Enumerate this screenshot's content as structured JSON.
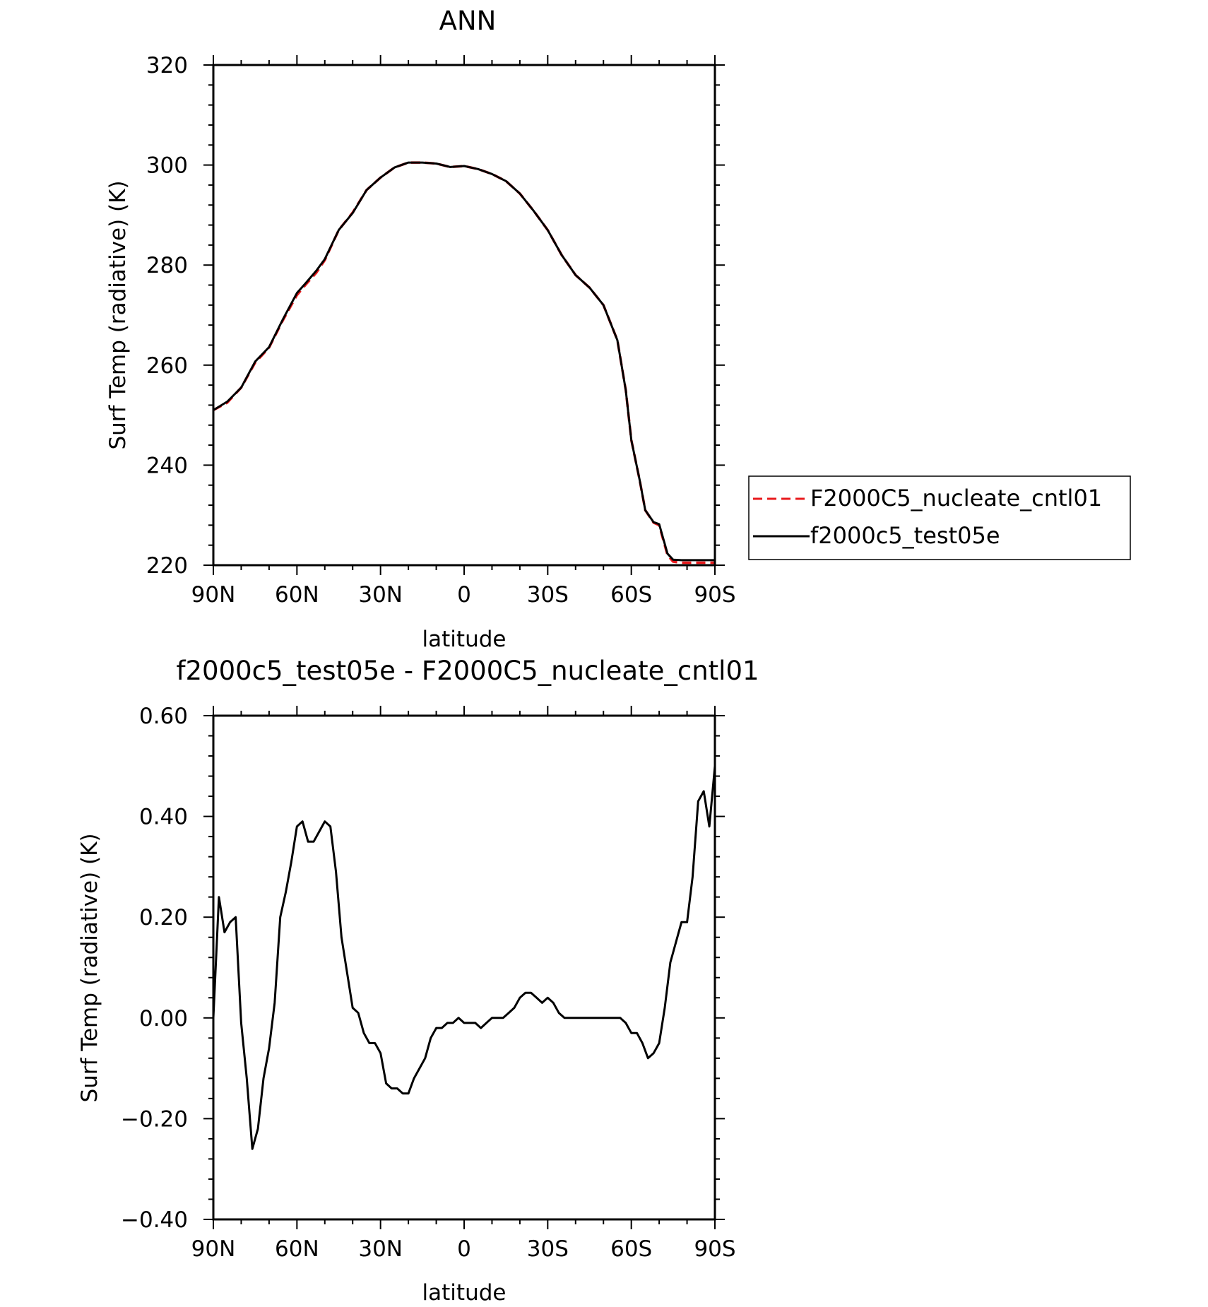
{
  "chart_data": [
    {
      "type": "line",
      "title": "ANN",
      "xlabel": "latitude",
      "ylabel": "Surf Temp (radiative) (K)",
      "xlim": [
        90,
        -90
      ],
      "ylim": [
        220,
        320
      ],
      "x_ticks": [
        90,
        60,
        30,
        0,
        -30,
        -60,
        -90
      ],
      "x_tick_labels": [
        "90N",
        "60N",
        "30N",
        "0",
        "30S",
        "60S",
        "90S"
      ],
      "y_ticks": [
        220,
        240,
        260,
        280,
        300,
        320
      ],
      "y_tick_labels": [
        "220",
        "240",
        "260",
        "280",
        "300",
        "320"
      ],
      "legend": {
        "position": "right",
        "entries": [
          {
            "label": "F2000C5_nucleate_cntl01",
            "color": "#e8191c",
            "style": "dashed"
          },
          {
            "label": "f2000c5_test05e",
            "color": "#000000",
            "style": "solid"
          }
        ]
      },
      "series": [
        {
          "name": "F2000C5_nucleate_cntl01",
          "color": "#e8191c",
          "style": "dashed",
          "x": [
            90,
            85,
            80,
            75,
            70,
            65,
            60,
            57,
            53,
            50,
            45,
            40,
            35,
            30,
            25,
            20,
            15,
            10,
            5,
            0,
            -5,
            -10,
            -15,
            -20,
            -25,
            -30,
            -35,
            -40,
            -45,
            -50,
            -55,
            -58,
            -60,
            -63,
            -65,
            -68,
            -70,
            -73,
            -75,
            -78,
            -80,
            -82,
            -85,
            -87,
            -90
          ],
          "y": [
            251,
            252.5,
            255.5,
            260.5,
            263.5,
            269,
            274,
            276,
            278.5,
            281,
            287,
            290.5,
            295,
            297.5,
            299.5,
            300.5,
            300.5,
            300.3,
            299.6,
            299.8,
            299.2,
            298.2,
            296.8,
            294.3,
            290.8,
            287,
            282,
            278,
            275.5,
            272,
            265,
            255,
            245,
            237,
            231,
            228.5,
            228,
            222,
            220.7,
            220.5,
            220.5,
            220.5,
            220.5,
            220.5,
            220.5
          ]
        },
        {
          "name": "f2000c5_test05e",
          "color": "#000000",
          "style": "solid",
          "x": [
            90,
            85,
            80,
            75,
            70,
            65,
            60,
            57,
            53,
            50,
            45,
            40,
            35,
            30,
            25,
            20,
            15,
            10,
            5,
            0,
            -5,
            -10,
            -15,
            -20,
            -25,
            -30,
            -35,
            -40,
            -45,
            -50,
            -55,
            -58,
            -60,
            -63,
            -65,
            -68,
            -70,
            -73,
            -75,
            -78,
            -80,
            -82,
            -85,
            -87,
            -90
          ],
          "y": [
            251,
            252.7,
            255.5,
            260.7,
            263.6,
            269.2,
            274.4,
            276.3,
            278.9,
            281.2,
            287,
            290.4,
            295,
            297.5,
            299.5,
            300.5,
            300.5,
            300.3,
            299.6,
            299.8,
            299.2,
            298.2,
            296.8,
            294.3,
            290.8,
            287,
            282,
            278,
            275.5,
            272,
            265,
            255,
            245,
            237,
            231,
            228.6,
            228.2,
            222.3,
            221.1,
            221,
            221,
            221,
            221,
            221,
            221
          ]
        }
      ]
    },
    {
      "type": "line",
      "title": "f2000c5_test05e - F2000C5_nucleate_cntl01",
      "xlabel": "latitude",
      "ylabel": "Surf Temp (radiative) (K)",
      "xlim": [
        90,
        -90
      ],
      "ylim": [
        -0.4,
        0.6
      ],
      "x_ticks": [
        90,
        60,
        30,
        0,
        -30,
        -60,
        -90
      ],
      "x_tick_labels": [
        "90N",
        "60N",
        "30N",
        "0",
        "30S",
        "60S",
        "90S"
      ],
      "y_ticks": [
        -0.4,
        -0.2,
        0.0,
        0.2,
        0.4,
        0.6
      ],
      "y_tick_labels": [
        "−0.40",
        "−0.20",
        "0.00",
        "0.20",
        "0.40",
        "0.60"
      ],
      "series": [
        {
          "color": "#000000",
          "style": "solid",
          "x": [
            90,
            88,
            86,
            84,
            82,
            80,
            78,
            76,
            74,
            72,
            70,
            68,
            66,
            64,
            62,
            60,
            58,
            56,
            54,
            52,
            50,
            48,
            46,
            44,
            42,
            40,
            38,
            36,
            34,
            32,
            30,
            28,
            26,
            24,
            22,
            20,
            18,
            16,
            14,
            12,
            10,
            8,
            6,
            4,
            2,
            0,
            -2,
            -4,
            -6,
            -8,
            -10,
            -12,
            -14,
            -16,
            -18,
            -20,
            -22,
            -24,
            -26,
            -28,
            -30,
            -32,
            -34,
            -36,
            -38,
            -40,
            -42,
            -44,
            -46,
            -48,
            -50,
            -52,
            -54,
            -56,
            -58,
            -60,
            -62,
            -64,
            -66,
            -68,
            -70,
            -72,
            -74,
            -76,
            -78,
            -80,
            -82,
            -84,
            -86,
            -88,
            -90
          ],
          "y": [
            0.0,
            0.24,
            0.17,
            0.19,
            0.2,
            -0.01,
            -0.12,
            -0.26,
            -0.22,
            -0.12,
            -0.06,
            0.03,
            0.2,
            0.25,
            0.31,
            0.38,
            0.39,
            0.35,
            0.35,
            0.37,
            0.39,
            0.38,
            0.29,
            0.16,
            0.09,
            0.02,
            0.01,
            -0.03,
            -0.05,
            -0.05,
            -0.07,
            -0.13,
            -0.14,
            -0.14,
            -0.15,
            -0.15,
            -0.12,
            -0.1,
            -0.08,
            -0.04,
            -0.02,
            -0.02,
            -0.01,
            -0.01,
            0.0,
            -0.01,
            -0.01,
            -0.01,
            -0.02,
            -0.01,
            0.0,
            0.0,
            0.0,
            0.01,
            0.02,
            0.04,
            0.05,
            0.05,
            0.04,
            0.03,
            0.04,
            0.03,
            0.01,
            0.0,
            0.0,
            0.0,
            0.0,
            0.0,
            0.0,
            0.0,
            0.0,
            0.0,
            0.0,
            0.0,
            -0.01,
            -0.03,
            -0.03,
            -0.05,
            -0.08,
            -0.07,
            -0.05,
            0.02,
            0.11,
            0.15,
            0.19,
            0.19,
            0.28,
            0.43,
            0.45,
            0.38,
            0.5
          ]
        }
      ]
    }
  ]
}
